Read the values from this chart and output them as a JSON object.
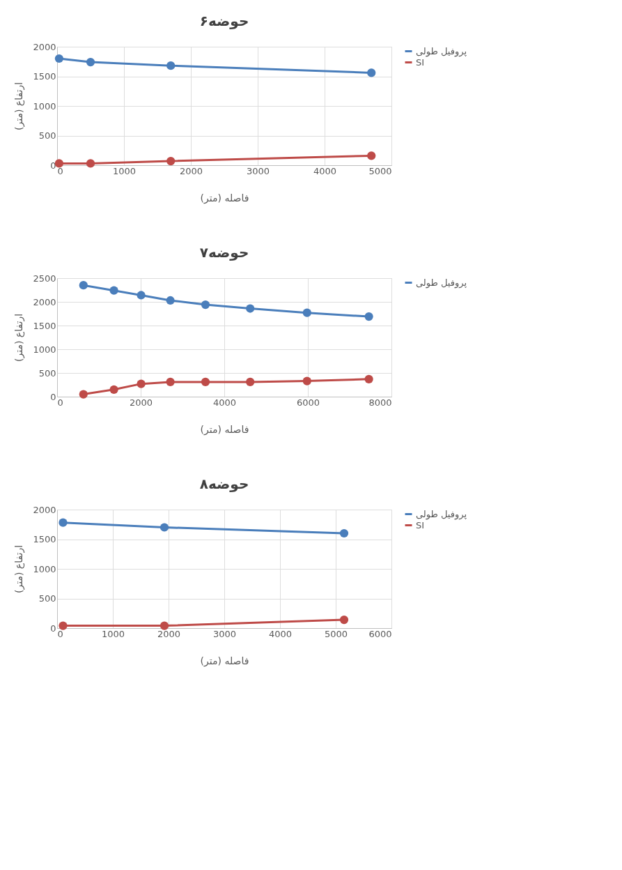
{
  "chart_data": [
    {
      "type": "line",
      "title": "حوضه۶",
      "xlabel": "فاصله (متر)",
      "ylabel": "ارتفاع (متر)",
      "xlim": [
        0,
        5000
      ],
      "xticks": [
        0,
        1000,
        2000,
        3000,
        4000,
        5000
      ],
      "ylim": [
        0,
        2000
      ],
      "yticks": [
        0,
        500,
        1000,
        1500,
        2000
      ],
      "grid": true,
      "legend": "right",
      "marker": "circle",
      "line_style": "solid",
      "series": [
        {
          "name": "پروفیل طولی",
          "color": "#4a7ebb",
          "x": [
            30,
            500,
            1700,
            4700
          ],
          "values": [
            1800,
            1740,
            1680,
            1560
          ]
        },
        {
          "name": "SI",
          "color": "#be4b48",
          "x": [
            30,
            500,
            1700,
            4700
          ],
          "values": [
            30,
            30,
            70,
            160
          ]
        }
      ]
    },
    {
      "type": "line",
      "title": "حوضه۷",
      "xlabel": "فاصله (متر)",
      "ylabel": "ارتفاع (متر)",
      "xlim": [
        0,
        8000
      ],
      "xticks": [
        0,
        2000,
        4000,
        6000,
        8000
      ],
      "ylim": [
        0,
        2500
      ],
      "yticks": [
        0,
        500,
        1000,
        1500,
        2000,
        2500
      ],
      "grid": true,
      "legend": "right",
      "marker": "circle",
      "line_style": "solid",
      "series": [
        {
          "name": "پروفیل طولی",
          "color": "#4a7ebb",
          "x": [
            630,
            1360,
            2010,
            2710,
            3550,
            4620,
            5980,
            7460
          ],
          "values": [
            2350,
            2240,
            2140,
            2030,
            1940,
            1860,
            1770,
            1690
          ]
        },
        {
          "color": "#be4b48",
          "x": [
            630,
            1360,
            2010,
            2710,
            3550,
            4620,
            5980,
            7460
          ],
          "values": [
            50,
            150,
            270,
            310,
            310,
            310,
            330,
            370
          ]
        }
      ]
    },
    {
      "type": "line",
      "title": "حوضه۸",
      "xlabel": "فاصله (متر)",
      "ylabel": "ارتفاع (متر)",
      "xlim": [
        0,
        6000
      ],
      "xticks": [
        0,
        1000,
        2000,
        3000,
        4000,
        5000,
        6000
      ],
      "ylim": [
        0,
        2000
      ],
      "yticks": [
        0,
        500,
        1000,
        1500,
        2000
      ],
      "grid": true,
      "legend": "right",
      "marker": "circle",
      "line_style": "solid",
      "series": [
        {
          "name": "پروفیل طولی",
          "color": "#4a7ebb",
          "x": [
            106,
            1925,
            5150
          ],
          "values": [
            1780,
            1700,
            1600
          ]
        },
        {
          "name": "SI",
          "color": "#be4b48",
          "x": [
            106,
            1925,
            5150
          ],
          "values": [
            40,
            40,
            140
          ]
        }
      ]
    }
  ]
}
